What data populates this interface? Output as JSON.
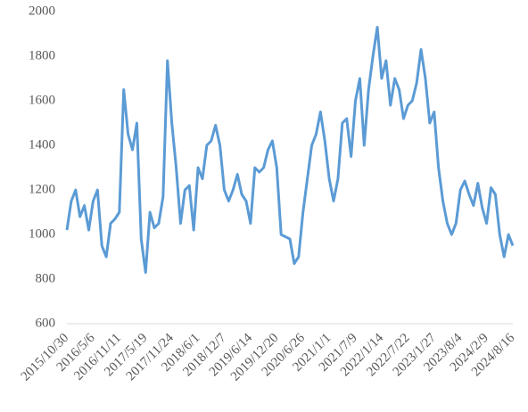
{
  "chart_data": {
    "type": "line",
    "categories": [
      "2015/10/30",
      null,
      null,
      null,
      null,
      null,
      "2016/5/6",
      null,
      null,
      null,
      null,
      null,
      "2016/11/11",
      null,
      null,
      null,
      null,
      null,
      "2017/5/19",
      null,
      null,
      null,
      null,
      null,
      "2017/11/24",
      null,
      null,
      null,
      null,
      null,
      "2018/6/1",
      null,
      null,
      null,
      null,
      null,
      "2018/12/7",
      null,
      null,
      null,
      null,
      null,
      "2019/6/14",
      null,
      null,
      null,
      null,
      null,
      "2019/12/20",
      null,
      null,
      null,
      null,
      null,
      "2020/6/26",
      null,
      null,
      null,
      null,
      null,
      "2021/1/1",
      null,
      null,
      null,
      null,
      null,
      "2021/7/9",
      null,
      null,
      null,
      null,
      null,
      "2022/1/14",
      null,
      null,
      null,
      null,
      null,
      "2022/7/22",
      null,
      null,
      null,
      null,
      null,
      "2023/1/27",
      null,
      null,
      null,
      null,
      null,
      "2023/8/4",
      null,
      null,
      null,
      null,
      null,
      "2024/2/9",
      null,
      null,
      null,
      null,
      null,
      "2024/8/16"
    ],
    "series": [
      {
        "color": "#5b9bd5",
        "values": [
          1020,
          1150,
          1200,
          1080,
          1130,
          1020,
          1150,
          1200,
          950,
          900,
          1050,
          1070,
          1100,
          1650,
          1450,
          1380,
          1500,
          980,
          830,
          1100,
          1030,
          1050,
          1170,
          1780,
          1500,
          1300,
          1050,
          1200,
          1220,
          1020,
          1300,
          1250,
          1400,
          1420,
          1490,
          1400,
          1200,
          1150,
          1200,
          1270,
          1180,
          1150,
          1050,
          1300,
          1280,
          1300,
          1380,
          1420,
          1300,
          1000,
          990,
          980,
          870,
          900,
          1100,
          1250,
          1400,
          1450,
          1550,
          1420,
          1250,
          1150,
          1250,
          1500,
          1520,
          1350,
          1600,
          1700,
          1400,
          1650,
          1800,
          1930,
          1700,
          1780,
          1580,
          1700,
          1650,
          1520,
          1580,
          1600,
          1680,
          1830,
          1700,
          1500,
          1550,
          1300,
          1150,
          1050,
          1000,
          1050,
          1200,
          1240,
          1180,
          1130,
          1230,
          1120,
          1050,
          1210,
          1180,
          1000,
          900,
          1000,
          950
        ]
      }
    ],
    "ylim": [
      600,
      2000
    ],
    "yticks": [
      600,
      800,
      1000,
      1200,
      1400,
      1600,
      1800,
      2000
    ],
    "grid": false
  }
}
